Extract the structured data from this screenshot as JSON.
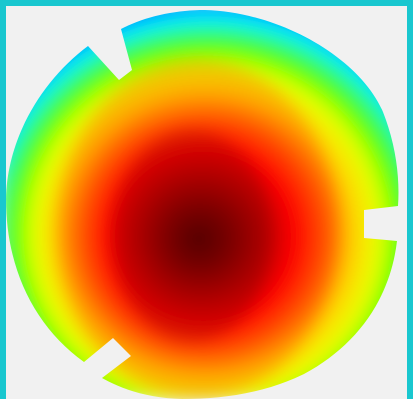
{
  "image": {
    "subject": "colormap-disk",
    "background_color": "#f1f1f1",
    "border_color": "#19c7cf",
    "colormap": [
      "#180000",
      "#9b0000",
      "#ff0000",
      "#ff6a00",
      "#ffd400",
      "#eaff00",
      "#50ff00",
      "#00f4ff",
      "#0079ff",
      "#3a00ff"
    ]
  }
}
